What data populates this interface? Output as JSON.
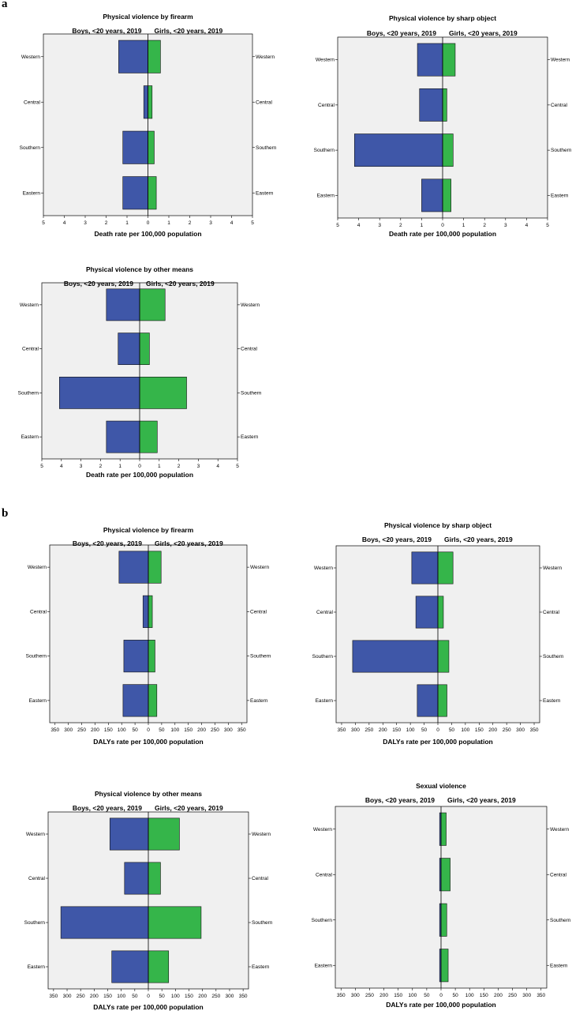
{
  "panels": {
    "a": "a",
    "b": "b"
  },
  "colors": {
    "boys": "#3f57a8",
    "girls": "#35b54a",
    "plot_bg": "#f0f0f0"
  },
  "chart_data": [
    {
      "type": "bar",
      "orientation": "population-pyramid",
      "panel": "a",
      "title": "Physical violence by firearm",
      "left_header": "Boys, <20 years, 2019",
      "right_header": "Girls,  <20 years, 2019",
      "xlabel": "Death rate per 100,000 population",
      "categories": [
        "Western",
        "Central",
        "Southern",
        "Eastern"
      ],
      "series": [
        {
          "name": "Boys, <20 years, 2019",
          "values": [
            1.4,
            0.2,
            1.2,
            1.2
          ]
        },
        {
          "name": "Girls,  <20 years, 2019",
          "values": [
            0.6,
            0.2,
            0.3,
            0.4
          ]
        }
      ],
      "xlim": [
        -5,
        5
      ],
      "ticks": [
        5,
        4,
        3,
        2,
        1,
        0,
        1,
        2,
        3,
        4,
        5
      ]
    },
    {
      "type": "bar",
      "orientation": "population-pyramid",
      "panel": "a",
      "title": "Physical violence by sharp object",
      "left_header": "Boys, <20 years, 2019",
      "right_header": "Girls,  <20 years, 2019",
      "xlabel": "Death rate per 100,000 population",
      "categories": [
        "Western",
        "Central",
        "Southern",
        "Eastern"
      ],
      "series": [
        {
          "name": "Boys, <20 years, 2019",
          "values": [
            1.2,
            1.1,
            4.2,
            1.0
          ]
        },
        {
          "name": "Girls,  <20 years, 2019",
          "values": [
            0.6,
            0.2,
            0.5,
            0.4
          ]
        }
      ],
      "xlim": [
        -5,
        5
      ],
      "ticks": [
        5,
        4,
        3,
        2,
        1,
        0,
        1,
        2,
        3,
        4,
        5
      ]
    },
    {
      "type": "bar",
      "orientation": "population-pyramid",
      "panel": "a",
      "title": "Physical violence by other means",
      "left_header": "Boys, <20 years, 2019",
      "right_header": "Girls,  <20 years, 2019",
      "xlabel": "Death rate per 100,000 population",
      "categories": [
        "Western",
        "Central",
        "Southern",
        "Eastern"
      ],
      "series": [
        {
          "name": "Boys, <20 years, 2019",
          "values": [
            1.7,
            1.1,
            4.1,
            1.7
          ]
        },
        {
          "name": "Girls,  <20 years, 2019",
          "values": [
            1.3,
            0.5,
            2.4,
            0.9
          ]
        }
      ],
      "xlim": [
        -5,
        5
      ],
      "ticks": [
        5,
        4,
        3,
        2,
        1,
        0,
        1,
        2,
        3,
        4,
        5
      ]
    },
    {
      "type": "bar",
      "orientation": "population-pyramid",
      "panel": "b",
      "title": "Physical violence by firearm",
      "left_header": "Boys, <20 years, 2019",
      "right_header": "Girls,  <20 years, 2019",
      "xlabel": "DALYs rate per 100,000 population",
      "categories": [
        "Western",
        "Central",
        "Southern",
        "Eastern"
      ],
      "series": [
        {
          "name": "Boys, <20 years, 2019",
          "values": [
            110,
            20,
            92,
            95
          ]
        },
        {
          "name": "Girls,  <20 years, 2019",
          "values": [
            48,
            15,
            25,
            32
          ]
        }
      ],
      "xlim": [
        -370,
        370
      ],
      "ticks": [
        350,
        300,
        250,
        200,
        150,
        100,
        50,
        0,
        50,
        100,
        150,
        200,
        250,
        300,
        350
      ]
    },
    {
      "type": "bar",
      "orientation": "population-pyramid",
      "panel": "b",
      "title": "Physical violence by sharp object",
      "left_header": "Boys, <20 years, 2019",
      "right_header": "Girls,  <20 years, 2019",
      "xlabel": "DALYs rate per 100,000 population",
      "categories": [
        "Western",
        "Central",
        "Southern",
        "Eastern"
      ],
      "series": [
        {
          "name": "Boys, <20 years, 2019",
          "values": [
            95,
            80,
            310,
            75
          ]
        },
        {
          "name": "Girls,  <20 years, 2019",
          "values": [
            55,
            20,
            40,
            33
          ]
        }
      ],
      "xlim": [
        -370,
        370
      ],
      "ticks": [
        350,
        300,
        250,
        200,
        150,
        100,
        50,
        0,
        50,
        100,
        150,
        200,
        250,
        300,
        350
      ]
    },
    {
      "type": "bar",
      "orientation": "population-pyramid",
      "panel": "b",
      "title": "Physical violence by other means",
      "left_header": "Boys, <20 years, 2019",
      "right_header": "Girls,  <20 years, 2019",
      "xlabel": "DALYs rate per 100,000 population",
      "categories": [
        "Western",
        "Central",
        "Southern",
        "Eastern"
      ],
      "series": [
        {
          "name": "Boys, <20 years, 2019",
          "values": [
            142,
            88,
            323,
            135
          ]
        },
        {
          "name": "Girls,  <20 years, 2019",
          "values": [
            115,
            45,
            195,
            75
          ]
        }
      ],
      "xlim": [
        -370,
        370
      ],
      "ticks": [
        350,
        300,
        250,
        200,
        150,
        100,
        50,
        0,
        50,
        100,
        150,
        200,
        250,
        300,
        350
      ]
    },
    {
      "type": "bar",
      "orientation": "population-pyramid",
      "panel": "b",
      "title": "Sexual violence",
      "left_header": "Boys, <20 years, 2019",
      "right_header": "Girls,  <20 years, 2019",
      "xlabel": "DALYs rate per 100,000 population",
      "categories": [
        "Western",
        "Central",
        "Southern",
        "Eastern"
      ],
      "series": [
        {
          "name": "Boys, <20 years, 2019",
          "values": [
            5,
            5,
            5,
            5
          ]
        },
        {
          "name": "Girls,  <20 years, 2019",
          "values": [
            18,
            32,
            20,
            25
          ]
        }
      ],
      "xlim": [
        -370,
        370
      ],
      "ticks": [
        350,
        300,
        250,
        200,
        150,
        100,
        50,
        0,
        50,
        100,
        150,
        200,
        250,
        300,
        350
      ]
    }
  ]
}
